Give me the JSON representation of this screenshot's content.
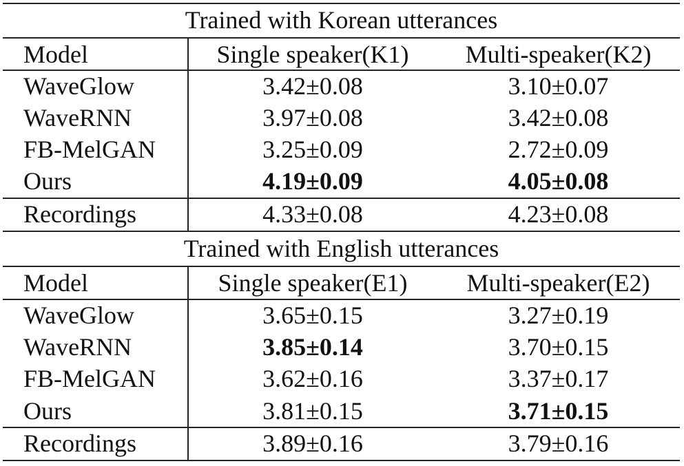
{
  "sections": [
    {
      "title": "Trained with Korean utterances",
      "headers": [
        "Model",
        "Single speaker(K1)",
        "Multi-speaker(K2)"
      ],
      "rows": [
        {
          "model": "WaveGlow",
          "single": "3.42±0.08",
          "multi": "3.10±0.07",
          "single_bold": false,
          "multi_bold": false
        },
        {
          "model": "WaveRNN",
          "single": "3.97±0.08",
          "multi": "3.42±0.08",
          "single_bold": false,
          "multi_bold": false
        },
        {
          "model": "FB-MelGAN",
          "single": "3.25±0.09",
          "multi": "2.72±0.09",
          "single_bold": false,
          "multi_bold": false
        },
        {
          "model": "Ours",
          "single": "4.19±0.09",
          "multi": "4.05±0.08",
          "single_bold": true,
          "multi_bold": true
        }
      ],
      "recordings": {
        "model": "Recordings",
        "single": "4.33±0.08",
        "multi": "4.23±0.08"
      }
    },
    {
      "title": "Trained with English utterances",
      "headers": [
        "Model",
        "Single speaker(E1)",
        "Multi-speaker(E2)"
      ],
      "rows": [
        {
          "model": "WaveGlow",
          "single": "3.65±0.15",
          "multi": "3.27±0.19",
          "single_bold": false,
          "multi_bold": false
        },
        {
          "model": "WaveRNN",
          "single": "3.85±0.14",
          "multi": "3.70±0.15",
          "single_bold": true,
          "multi_bold": false
        },
        {
          "model": "FB-MelGAN",
          "single": "3.62±0.16",
          "multi": "3.37±0.17",
          "single_bold": false,
          "multi_bold": false
        },
        {
          "model": "Ours",
          "single": "3.81±0.15",
          "multi": "3.71±0.15",
          "single_bold": false,
          "multi_bold": true
        }
      ],
      "recordings": {
        "model": "Recordings",
        "single": "3.89±0.16",
        "multi": "3.79±0.16"
      }
    }
  ]
}
